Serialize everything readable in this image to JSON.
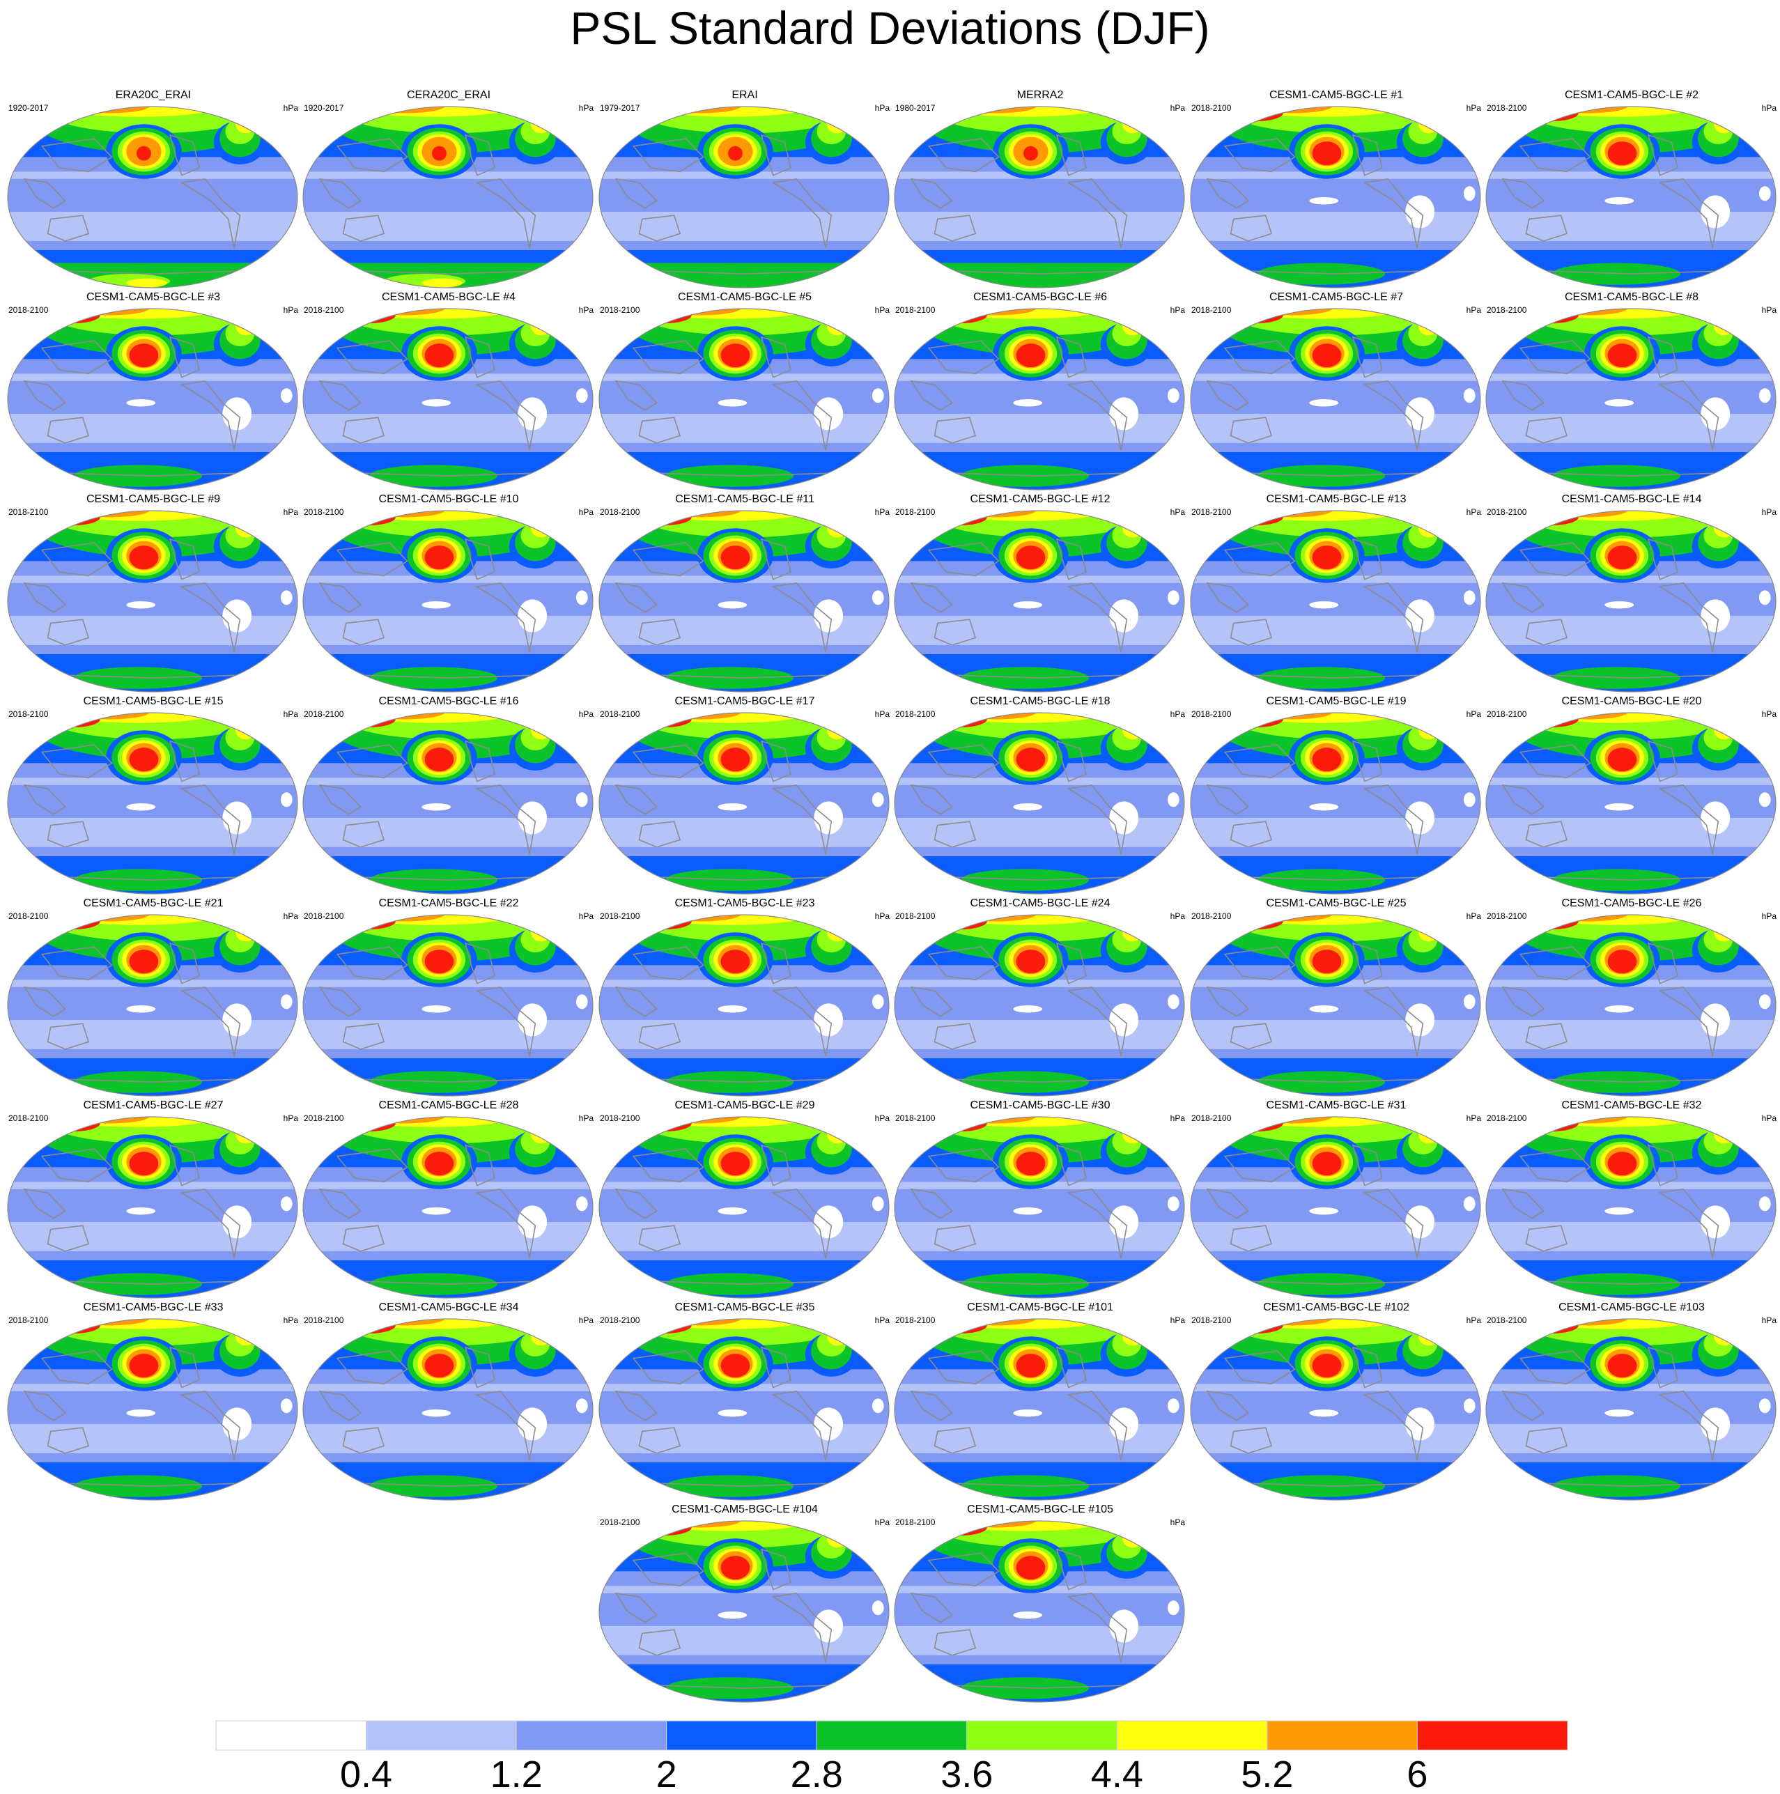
{
  "title": "PSL Standard Deviations (DJF)",
  "chart_data": {
    "type": "heatmap",
    "title": "PSL Standard Deviations (DJF)",
    "units": "hPa",
    "colorbar": {
      "levels": [
        "0.4",
        "1.2",
        "2",
        "2.8",
        "3.6",
        "4.4",
        "5.2",
        "6"
      ],
      "colors": [
        "#ffffff",
        "#b4c3f8",
        "#8299f4",
        "#0a5cff",
        "#0cc32a",
        "#8fff14",
        "#ffff0e",
        "#ff9a04",
        "#fa1b0a"
      ]
    },
    "panels": [
      {
        "title": "ERA20C_ERAI",
        "years": "1920-2017",
        "units": "hPa"
      },
      {
        "title": "CERA20C_ERAI",
        "years": "1920-2017",
        "units": "hPa"
      },
      {
        "title": "ERAI",
        "years": "1979-2017",
        "units": "hPa"
      },
      {
        "title": "MERRA2",
        "years": "1980-2017",
        "units": "hPa"
      },
      {
        "title": "CESM1-CAM5-BGC-LE #1",
        "years": "2018-2100",
        "units": "hPa"
      },
      {
        "title": "CESM1-CAM5-BGC-LE #2",
        "years": "2018-2100",
        "units": "hPa"
      },
      {
        "title": "CESM1-CAM5-BGC-LE #3",
        "years": "2018-2100",
        "units": "hPa"
      },
      {
        "title": "CESM1-CAM5-BGC-LE #4",
        "years": "2018-2100",
        "units": "hPa"
      },
      {
        "title": "CESM1-CAM5-BGC-LE #5",
        "years": "2018-2100",
        "units": "hPa"
      },
      {
        "title": "CESM1-CAM5-BGC-LE #6",
        "years": "2018-2100",
        "units": "hPa"
      },
      {
        "title": "CESM1-CAM5-BGC-LE #7",
        "years": "2018-2100",
        "units": "hPa"
      },
      {
        "title": "CESM1-CAM5-BGC-LE #8",
        "years": "2018-2100",
        "units": "hPa"
      },
      {
        "title": "CESM1-CAM5-BGC-LE #9",
        "years": "2018-2100",
        "units": "hPa"
      },
      {
        "title": "CESM1-CAM5-BGC-LE #10",
        "years": "2018-2100",
        "units": "hPa"
      },
      {
        "title": "CESM1-CAM5-BGC-LE #11",
        "years": "2018-2100",
        "units": "hPa"
      },
      {
        "title": "CESM1-CAM5-BGC-LE #12",
        "years": "2018-2100",
        "units": "hPa"
      },
      {
        "title": "CESM1-CAM5-BGC-LE #13",
        "years": "2018-2100",
        "units": "hPa"
      },
      {
        "title": "CESM1-CAM5-BGC-LE #14",
        "years": "2018-2100",
        "units": "hPa"
      },
      {
        "title": "CESM1-CAM5-BGC-LE #15",
        "years": "2018-2100",
        "units": "hPa"
      },
      {
        "title": "CESM1-CAM5-BGC-LE #16",
        "years": "2018-2100",
        "units": "hPa"
      },
      {
        "title": "CESM1-CAM5-BGC-LE #17",
        "years": "2018-2100",
        "units": "hPa"
      },
      {
        "title": "CESM1-CAM5-BGC-LE #18",
        "years": "2018-2100",
        "units": "hPa"
      },
      {
        "title": "CESM1-CAM5-BGC-LE #19",
        "years": "2018-2100",
        "units": "hPa"
      },
      {
        "title": "CESM1-CAM5-BGC-LE #20",
        "years": "2018-2100",
        "units": "hPa"
      },
      {
        "title": "CESM1-CAM5-BGC-LE #21",
        "years": "2018-2100",
        "units": "hPa"
      },
      {
        "title": "CESM1-CAM5-BGC-LE #22",
        "years": "2018-2100",
        "units": "hPa"
      },
      {
        "title": "CESM1-CAM5-BGC-LE #23",
        "years": "2018-2100",
        "units": "hPa"
      },
      {
        "title": "CESM1-CAM5-BGC-LE #24",
        "years": "2018-2100",
        "units": "hPa"
      },
      {
        "title": "CESM1-CAM5-BGC-LE #25",
        "years": "2018-2100",
        "units": "hPa"
      },
      {
        "title": "CESM1-CAM5-BGC-LE #26",
        "years": "2018-2100",
        "units": "hPa"
      },
      {
        "title": "CESM1-CAM5-BGC-LE #27",
        "years": "2018-2100",
        "units": "hPa"
      },
      {
        "title": "CESM1-CAM5-BGC-LE #28",
        "years": "2018-2100",
        "units": "hPa"
      },
      {
        "title": "CESM1-CAM5-BGC-LE #29",
        "years": "2018-2100",
        "units": "hPa"
      },
      {
        "title": "CESM1-CAM5-BGC-LE #30",
        "years": "2018-2100",
        "units": "hPa"
      },
      {
        "title": "CESM1-CAM5-BGC-LE #31",
        "years": "2018-2100",
        "units": "hPa"
      },
      {
        "title": "CESM1-CAM5-BGC-LE #32",
        "years": "2018-2100",
        "units": "hPa"
      },
      {
        "title": "CESM1-CAM5-BGC-LE #33",
        "years": "2018-2100",
        "units": "hPa"
      },
      {
        "title": "CESM1-CAM5-BGC-LE #34",
        "years": "2018-2100",
        "units": "hPa"
      },
      {
        "title": "CESM1-CAM5-BGC-LE #35",
        "years": "2018-2100",
        "units": "hPa"
      },
      {
        "title": "CESM1-CAM5-BGC-LE #101",
        "years": "2018-2100",
        "units": "hPa"
      },
      {
        "title": "CESM1-CAM5-BGC-LE #102",
        "years": "2018-2100",
        "units": "hPa"
      },
      {
        "title": "CESM1-CAM5-BGC-LE #103",
        "years": "2018-2100",
        "units": "hPa"
      },
      {
        "title": "CESM1-CAM5-BGC-LE #104",
        "years": "2018-2100",
        "units": "hPa"
      },
      {
        "title": "CESM1-CAM5-BGC-LE #105",
        "years": "2018-2100",
        "units": "hPa"
      }
    ]
  }
}
